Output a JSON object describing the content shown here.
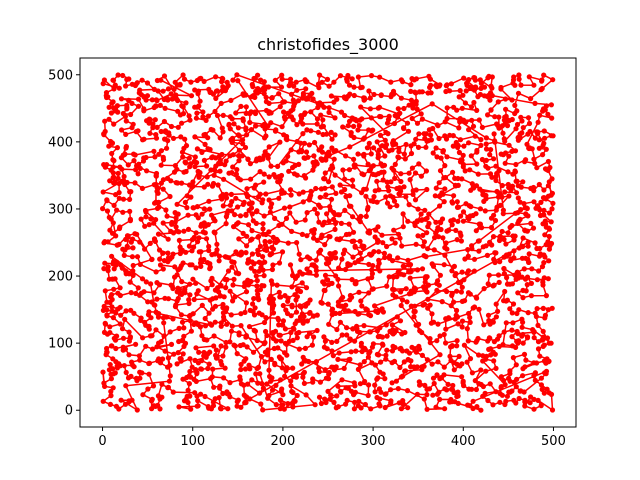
{
  "chart_data": {
    "type": "line",
    "title": "christofides_3000",
    "xlabel": "",
    "ylabel": "",
    "xlim": [
      -25,
      525
    ],
    "ylim": [
      -25,
      525
    ],
    "xticks": [
      0,
      100,
      200,
      300,
      400,
      500
    ],
    "yticks": [
      0,
      100,
      200,
      300,
      400,
      500
    ],
    "grid": false,
    "series": [
      {
        "color": "#ff0000",
        "marker": "circle",
        "points_count": 3000,
        "x_range": [
          0,
          500
        ],
        "y_range": [
          0,
          500
        ],
        "note_points": "closed tour through 3000 points spread uniformly over [0,500]x[0,500]"
      }
    ]
  }
}
